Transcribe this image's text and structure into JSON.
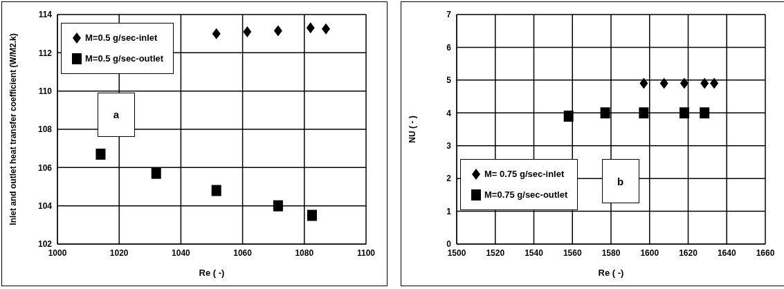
{
  "chart_data": [
    {
      "type": "scatter",
      "xlabel": "Re ( -)",
      "ylabel": "Inlet and outlet heat transfer coefficient (W/M2.k)",
      "xlim": [
        1000,
        1100
      ],
      "xticks": [
        1000,
        1020,
        1040,
        1060,
        1080,
        1100
      ],
      "ylim": [
        102,
        114
      ],
      "yticks": [
        102,
        104,
        106,
        108,
        110,
        112,
        114
      ],
      "grid": true,
      "legend": "top left",
      "annotations": [
        "a"
      ],
      "series": [
        {
          "name": "M=0.5 g/sec-inlet",
          "color": "#000000",
          "marker": "diamond",
          "x": [
            1051.5,
            1061.5,
            1071.5,
            1082,
            1087
          ],
          "values": [
            113.0,
            113.1,
            113.15,
            113.3,
            113.25
          ]
        },
        {
          "name": "M=0.5 g/sec-outlet",
          "color": "#000000",
          "marker": "square",
          "x": [
            1014,
            1032,
            1051.5,
            1071.5,
            1082.5
          ],
          "values": [
            106.7,
            105.7,
            104.8,
            104.0,
            103.5
          ]
        }
      ]
    },
    {
      "type": "scatter",
      "xlabel": "Re ( -)",
      "ylabel": "NU ( - )",
      "xlim": [
        1500,
        1660
      ],
      "xticks": [
        1500,
        1520,
        1540,
        1560,
        1580,
        1600,
        1620,
        1640,
        1660
      ],
      "ylim": [
        0,
        7
      ],
      "yticks": [
        0,
        1,
        2,
        3,
        4,
        5,
        6,
        7
      ],
      "grid": true,
      "legend": "bottom left",
      "annotations": [
        "b"
      ],
      "series": [
        {
          "name": "M= 0.75 g/sec-inlet",
          "color": "#000000",
          "marker": "diamond",
          "x": [
            1597,
            1607.5,
            1618,
            1628.5,
            1633.5
          ],
          "values": [
            4.9,
            4.9,
            4.9,
            4.9,
            4.9
          ]
        },
        {
          "name": "M=0.75 g/sec-outlet",
          "color": "#000000",
          "marker": "square",
          "x": [
            1558,
            1577,
            1597,
            1618,
            1628.5
          ],
          "values": [
            3.9,
            4.0,
            4.0,
            4.0,
            4.0
          ]
        }
      ]
    }
  ]
}
